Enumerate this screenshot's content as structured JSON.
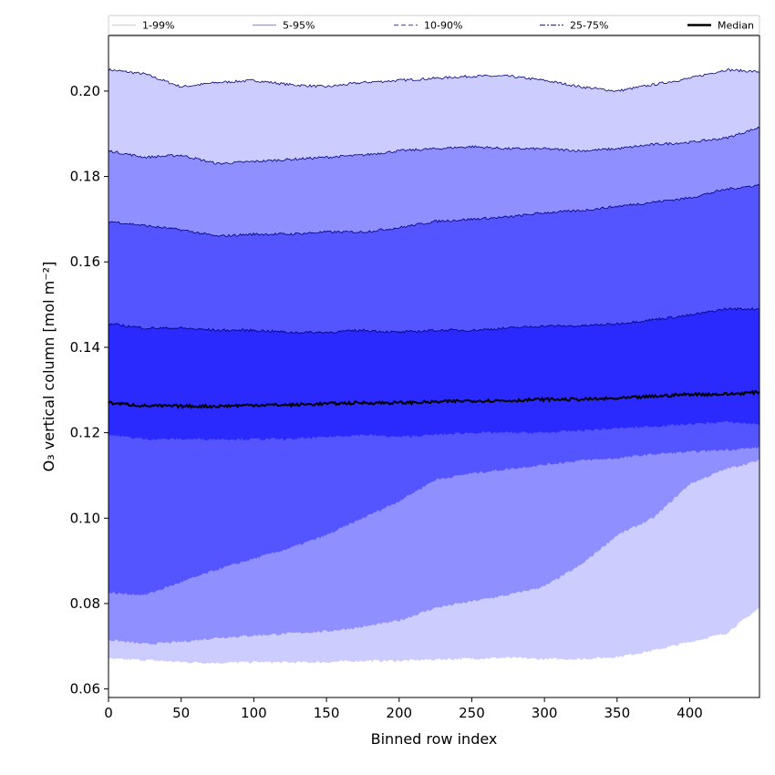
{
  "chart_data": {
    "type": "area",
    "title": "",
    "xlabel": "Binned row index",
    "ylabel": "O₃ vertical column [mol m⁻²]",
    "xlim": [
      0,
      448
    ],
    "ylim": [
      0.058,
      0.213
    ],
    "xticks": [
      0,
      50,
      100,
      150,
      200,
      250,
      300,
      350,
      400
    ],
    "yticks": [
      0.06,
      0.08,
      0.1,
      0.12,
      0.14,
      0.16,
      0.18,
      0.2
    ],
    "ytick_labels": [
      "0.06",
      "0.08",
      "0.10",
      "0.12",
      "0.14",
      "0.16",
      "0.18",
      "0.20"
    ],
    "grid": false,
    "legend_position": "top (above plot, single row)",
    "x": [
      0,
      25,
      50,
      75,
      100,
      125,
      150,
      175,
      200,
      225,
      250,
      275,
      300,
      325,
      350,
      375,
      400,
      425,
      448
    ],
    "bands": [
      {
        "name": "1-99%",
        "color": "#ccccff",
        "line_style": "solid",
        "lower": [
          0.067,
          0.0668,
          0.0663,
          0.0661,
          0.0663,
          0.0662,
          0.0663,
          0.0666,
          0.0666,
          0.0669,
          0.0671,
          0.0673,
          0.067,
          0.067,
          0.0675,
          0.069,
          0.071,
          0.073,
          0.079
        ],
        "upper": [
          0.205,
          0.204,
          0.201,
          0.202,
          0.2025,
          0.2015,
          0.201,
          0.202,
          0.2025,
          0.203,
          0.2035,
          0.2035,
          0.2025,
          0.201,
          0.2,
          0.2015,
          0.203,
          0.205,
          0.2045
        ]
      },
      {
        "name": "5-95%",
        "color": "#8f8fff",
        "line_style": "solid",
        "lower": [
          0.0715,
          0.0705,
          0.071,
          0.072,
          0.0725,
          0.073,
          0.0735,
          0.0745,
          0.076,
          0.079,
          0.0805,
          0.082,
          0.084,
          0.089,
          0.096,
          0.1,
          0.108,
          0.1115,
          0.1135
        ],
        "upper": [
          0.186,
          0.1845,
          0.185,
          0.183,
          0.1835,
          0.184,
          0.1845,
          0.185,
          0.186,
          0.1865,
          0.187,
          0.1865,
          0.1865,
          0.186,
          0.1865,
          0.1875,
          0.188,
          0.189,
          0.1915
        ]
      },
      {
        "name": "10-90%",
        "color": "#5555ff",
        "line_style": "dashed",
        "lower": [
          0.0825,
          0.082,
          0.085,
          0.088,
          0.0905,
          0.093,
          0.096,
          0.1,
          0.104,
          0.109,
          0.1105,
          0.1115,
          0.1125,
          0.1135,
          0.114,
          0.115,
          0.1155,
          0.116,
          0.1165
        ],
        "upper": [
          0.1695,
          0.1685,
          0.1675,
          0.166,
          0.1665,
          0.1665,
          0.167,
          0.167,
          0.168,
          0.1695,
          0.17,
          0.1705,
          0.1715,
          0.172,
          0.173,
          0.174,
          0.175,
          0.177,
          0.178
        ]
      },
      {
        "name": "25-75%",
        "color": "#2a2aff",
        "line_style": "dashdot",
        "lower": [
          0.1195,
          0.1185,
          0.1185,
          0.1185,
          0.1185,
          0.1185,
          0.119,
          0.1195,
          0.119,
          0.1195,
          0.12,
          0.12,
          0.12,
          0.1205,
          0.121,
          0.1215,
          0.122,
          0.1225,
          0.122
        ],
        "upper": [
          0.1455,
          0.1445,
          0.1445,
          0.144,
          0.144,
          0.1435,
          0.1435,
          0.144,
          0.1435,
          0.144,
          0.144,
          0.1445,
          0.145,
          0.145,
          0.1455,
          0.1465,
          0.1475,
          0.149,
          0.149
        ]
      }
    ],
    "median": {
      "name": "Median",
      "color": "#000000",
      "values": [
        0.127,
        0.1263,
        0.1262,
        0.1262,
        0.1265,
        0.1265,
        0.1268,
        0.127,
        0.127,
        0.1272,
        0.1275,
        0.1275,
        0.1278,
        0.1278,
        0.128,
        0.1285,
        0.129,
        0.129,
        0.1295
      ]
    }
  }
}
